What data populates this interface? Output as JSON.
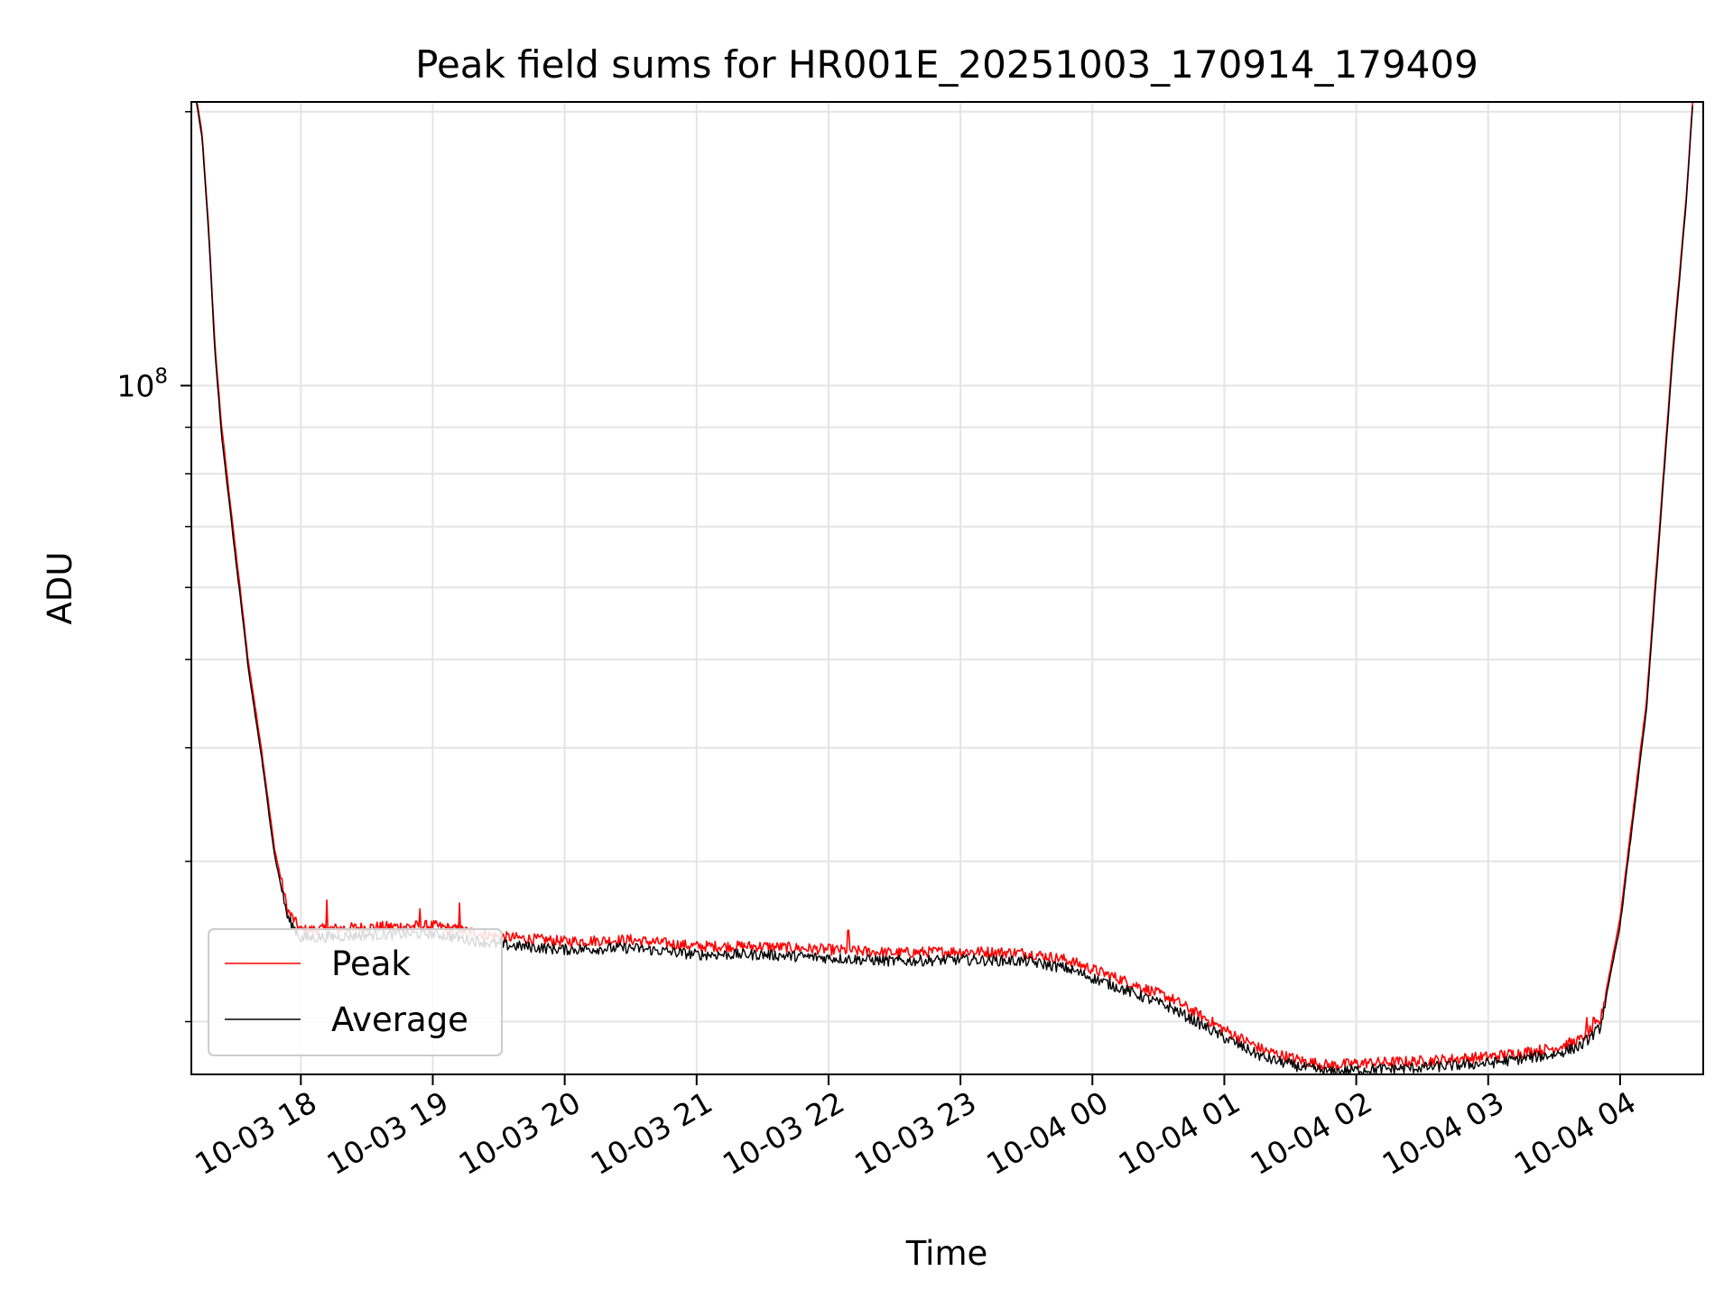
{
  "chart_data": {
    "type": "line",
    "title": "Peak field sums for HR001E_20251003_170914_179409",
    "xlabel": "Time",
    "ylabel": "ADU",
    "x_tick_labels": [
      "10-03 18",
      "10-03 19",
      "10-03 20",
      "10-03 21",
      "10-03 22",
      "10-03 23",
      "10-04 00",
      "10-04 01",
      "10-04 02",
      "10-04 03",
      "10-04 04"
    ],
    "x_ticks_hours": [
      0,
      1,
      2,
      3,
      4,
      5,
      6,
      7,
      8,
      9,
      10
    ],
    "xlim_hours": [
      -0.83,
      10.63
    ],
    "x_origin": "2025-10-03 18:00",
    "yscale": "log",
    "ylim": [
      17500000,
      205000000
    ],
    "y_major_tick": {
      "value": 100000000,
      "base": "10",
      "exponent": "8"
    },
    "y_minor_ticks": [
      20000000,
      30000000,
      40000000,
      50000000,
      60000000,
      70000000,
      80000000,
      90000000,
      200000000
    ],
    "grid": true,
    "legend_position": "lower-left",
    "series": [
      {
        "name": "Peak",
        "color": "#ff0000",
        "x": [
          -0.8,
          -0.75,
          -0.7,
          -0.65,
          -0.6,
          -0.5,
          -0.45,
          -0.4,
          -0.3,
          -0.2,
          -0.1,
          0,
          0.5,
          1,
          1.5,
          2,
          2.5,
          3,
          3.5,
          4,
          4.5,
          5,
          5.5,
          5.8,
          6.2,
          6.6,
          7,
          7.3,
          7.6,
          7.8,
          8,
          8.5,
          9,
          9.5,
          9.7,
          9.85,
          10,
          10.2,
          10.4,
          10.5,
          10.55
        ],
        "y": [
          210000000,
          190000000,
          150000000,
          110000000,
          90000000,
          67000000,
          58000000,
          50000000,
          40000000,
          31000000,
          26500000,
          25200000,
          25400000,
          25500000,
          24800000,
          24500000,
          24600000,
          24200000,
          24200000,
          24000000,
          23800000,
          23900000,
          23800000,
          23400000,
          22300000,
          21200000,
          19600000,
          18600000,
          18100000,
          17900000,
          18000000,
          18100000,
          18300000,
          18700000,
          19100000,
          20000000,
          26000000,
          45000000,
          110000000,
          160000000,
          205000000
        ],
        "spikes": [
          {
            "x": 0.2,
            "y": 27200000
          },
          {
            "x": 0.9,
            "y": 26600000
          },
          {
            "x": 1.2,
            "y": 27000000
          },
          {
            "x": 4.15,
            "y": 25200000
          },
          {
            "x": 9.75,
            "y": 20200000
          },
          {
            "x": 9.8,
            "y": 20200000
          }
        ]
      },
      {
        "name": "Average",
        "color": "#000000",
        "x": [
          -0.8,
          -0.75,
          -0.7,
          -0.65,
          -0.6,
          -0.5,
          -0.45,
          -0.4,
          -0.3,
          -0.2,
          -0.1,
          0,
          0.5,
          1,
          1.5,
          2,
          2.5,
          3,
          3.5,
          4,
          4.5,
          5,
          5.5,
          5.8,
          6.2,
          6.6,
          7,
          7.3,
          7.6,
          7.8,
          8,
          8.5,
          9,
          9.5,
          9.7,
          9.85,
          10,
          10.2,
          10.4,
          10.5,
          10.55
        ],
        "y": [
          208000000,
          188000000,
          148000000,
          108000000,
          88000000,
          65500000,
          57000000,
          49000000,
          39200000,
          30500000,
          26000000,
          24700000,
          24900000,
          25000000,
          24300000,
          24000000,
          24100000,
          23700000,
          23700000,
          23500000,
          23300000,
          23400000,
          23300000,
          22900000,
          21800000,
          20700000,
          19200000,
          18250000,
          17800000,
          17600000,
          17700000,
          17800000,
          18000000,
          18400000,
          18800000,
          19700000,
          25500000,
          44000000,
          108000000,
          158000000,
          203000000
        ]
      }
    ]
  }
}
